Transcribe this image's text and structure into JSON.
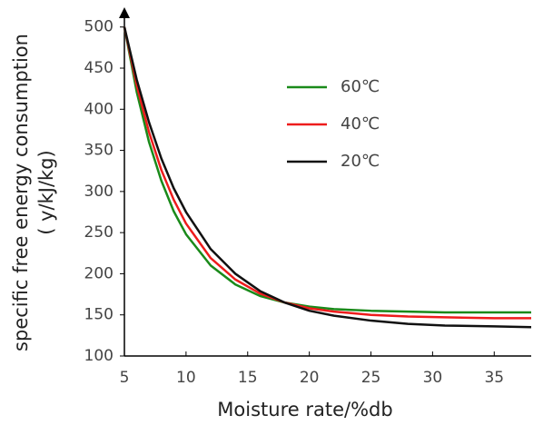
{
  "chart_data": {
    "type": "line",
    "xlabel": "Moisture rate/%db",
    "ylabel": [
      "specific free energy consumption",
      "( y/kJ/kg)"
    ],
    "x": [
      5,
      6,
      7,
      8,
      9,
      10,
      12,
      14,
      16,
      18,
      20,
      22,
      25,
      28,
      31,
      35,
      38
    ],
    "series": [
      {
        "name": "60℃",
        "color": "#1a8a1a",
        "values": [
          500,
          421,
          360,
          313,
          276,
          248,
          210,
          187,
          173,
          165,
          160,
          157,
          155,
          154,
          153,
          153,
          153
        ]
      },
      {
        "name": "40℃",
        "color": "#ee1c1c",
        "values": [
          500,
          429,
          372,
          326,
          290,
          261,
          219,
          193,
          176,
          165,
          158,
          154,
          150,
          148,
          147,
          146,
          146
        ]
      },
      {
        "name": "20℃",
        "color": "#111111",
        "values": [
          500,
          436,
          384,
          340,
          304,
          275,
          230,
          200,
          179,
          165,
          155,
          149,
          143,
          139,
          137,
          136,
          135
        ]
      }
    ],
    "xlim": [
      5,
      38
    ],
    "xticks": [
      5,
      10,
      15,
      20,
      25,
      30,
      35
    ],
    "ylim": [
      100,
      524
    ],
    "yticks": [
      100,
      150,
      200,
      250,
      300,
      350,
      400,
      450,
      500
    ],
    "grid": false
  }
}
